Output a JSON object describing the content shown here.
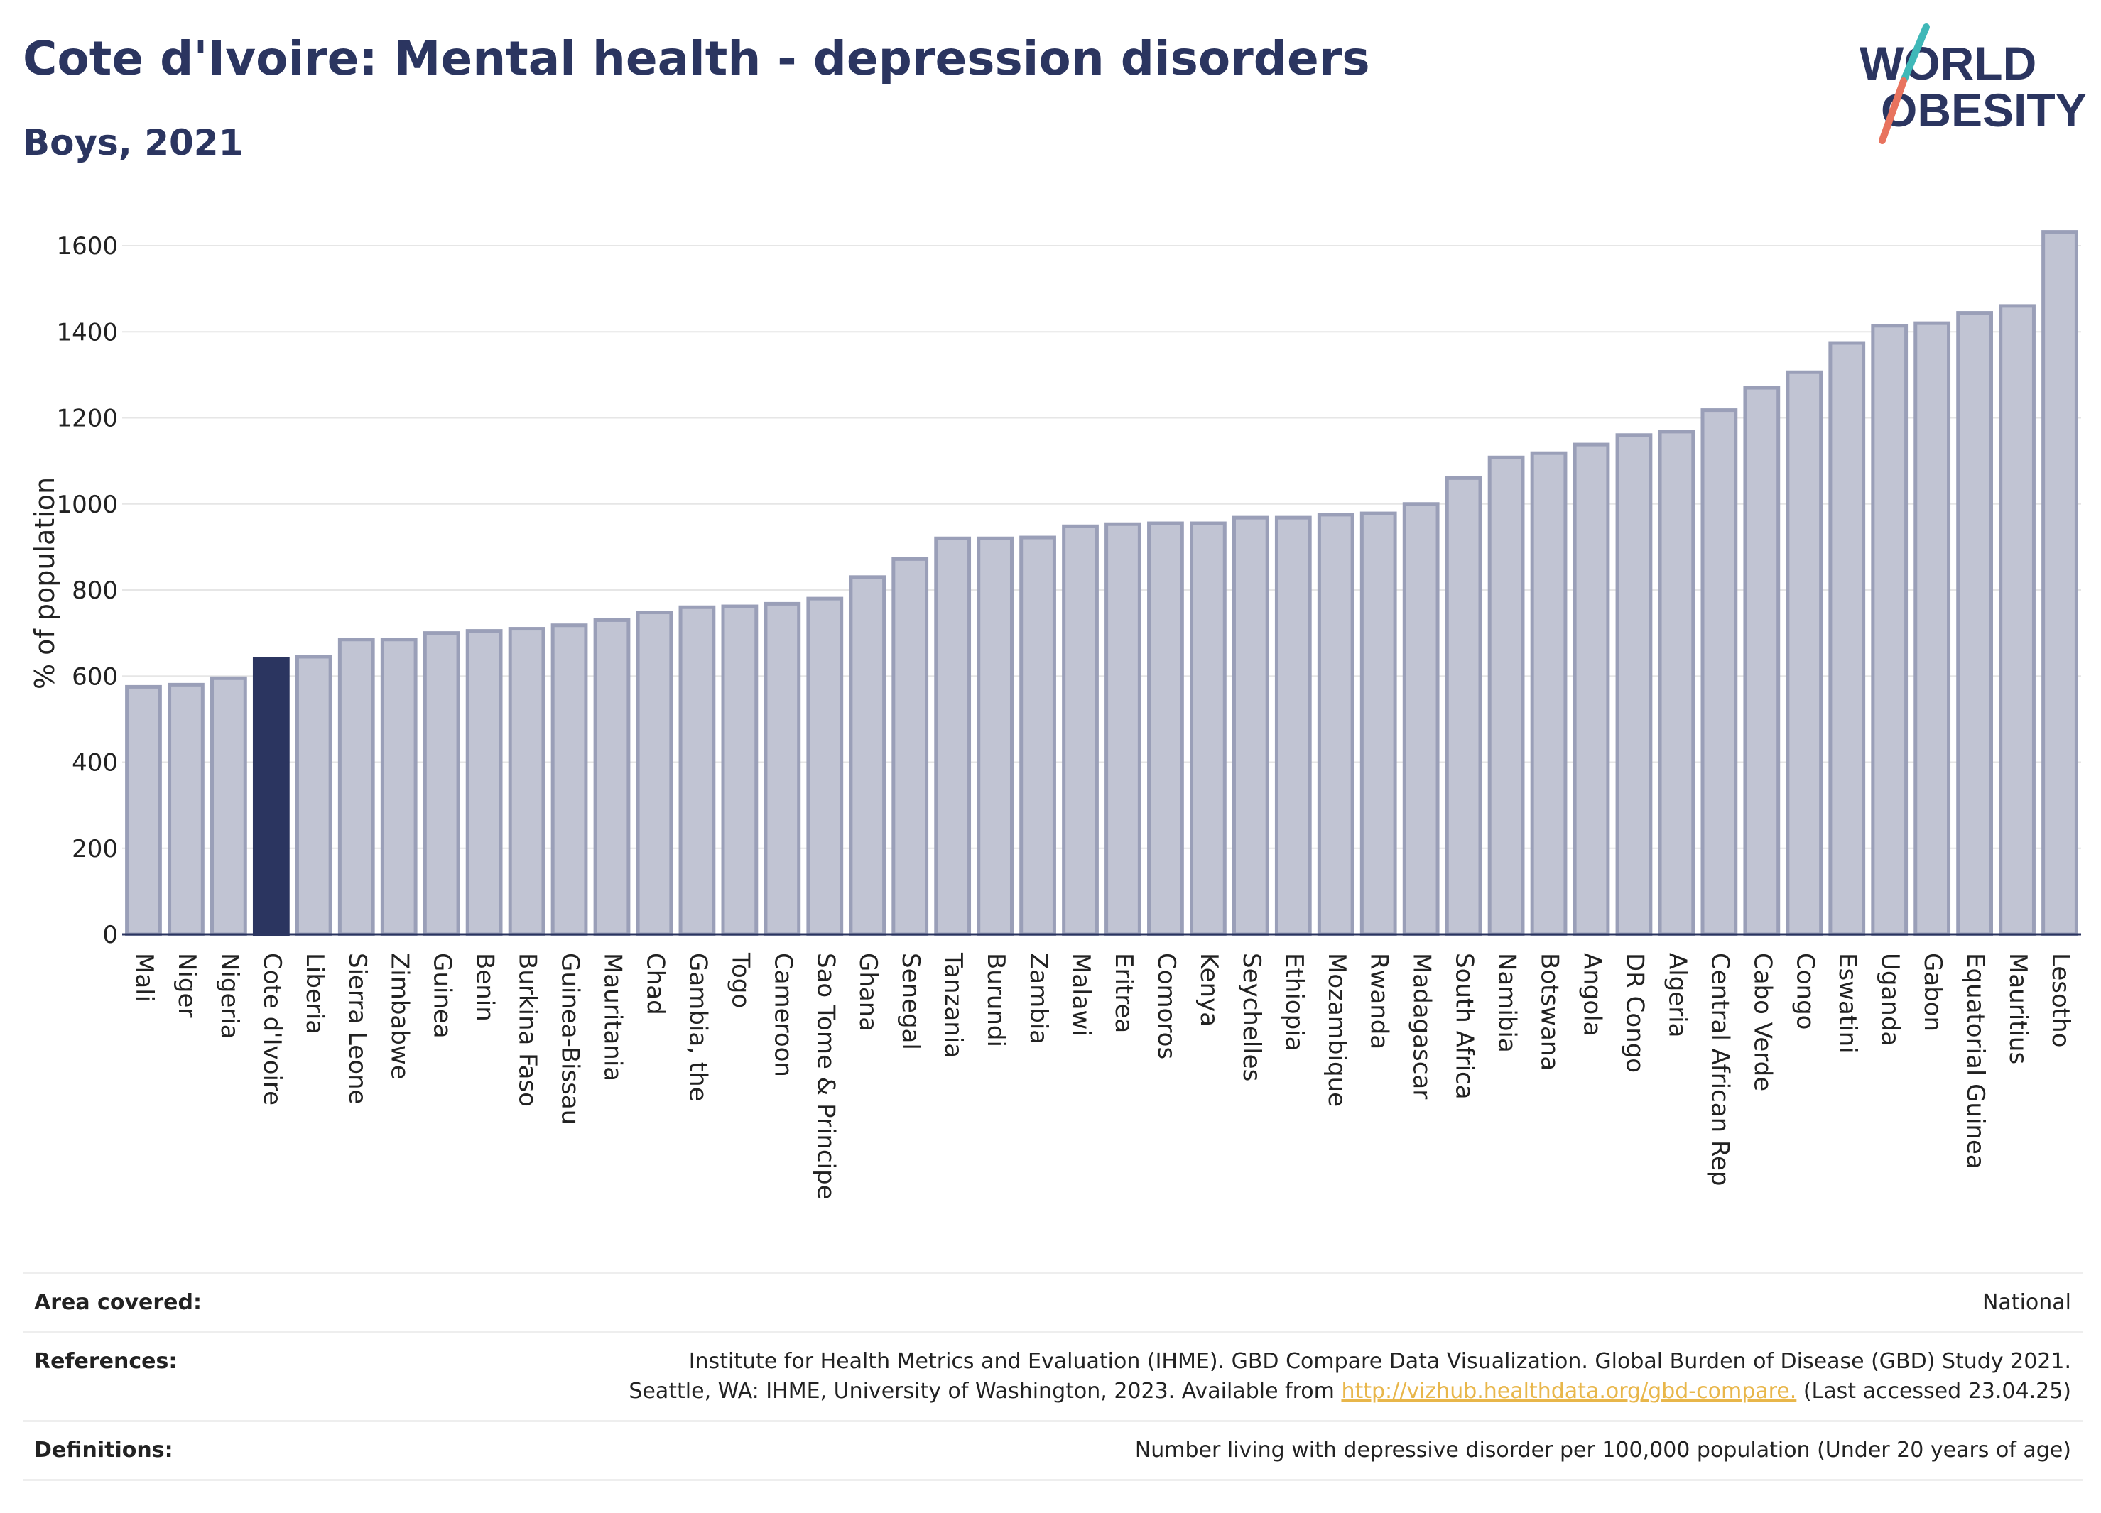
{
  "header": {
    "title": "Cote d'Ivoire: Mental health - depression disorders",
    "subtitle": "Boys, 2021"
  },
  "logo": {
    "line1": "WORLD",
    "line2": "OBESITY"
  },
  "colors": {
    "bar": "#c1c4d3",
    "bar_stroke": "#9a9fb8",
    "highlight": "#2b3560",
    "grid": "#e6e6e6",
    "axis_text": "#222222",
    "logo_navy": "#2b3560",
    "logo_teal": "#3fb8b8",
    "logo_coral": "#e8735e"
  },
  "chart_data": {
    "type": "bar",
    "title": "Cote d'Ivoire: Mental health - depression disorders",
    "subtitle": "Boys, 2021",
    "xlabel": "",
    "ylabel": "% of population",
    "ylim": [
      0,
      1600
    ],
    "yticks": [
      0,
      200,
      400,
      600,
      800,
      1000,
      1200,
      1400,
      1600
    ],
    "grid": true,
    "highlight": "Cote d'Ivoire",
    "categories": [
      "Mali",
      "Niger",
      "Nigeria",
      "Cote d'Ivoire",
      "Liberia",
      "Sierra Leone",
      "Zimbabwe",
      "Guinea",
      "Benin",
      "Burkina Faso",
      "Guinea-Bissau",
      "Mauritania",
      "Chad",
      "Gambia, the",
      "Togo",
      "Cameroon",
      "Sao Tome & Principe",
      "Ghana",
      "Senegal",
      "Tanzania",
      "Burundi",
      "Zambia",
      "Malawi",
      "Eritrea",
      "Comoros",
      "Kenya",
      "Seychelles",
      "Ethiopia",
      "Mozambique",
      "Rwanda",
      "Madagascar",
      "South Africa",
      "Namibia",
      "Botswana",
      "Angola",
      "DR Congo",
      "Algeria",
      "Central African Rep",
      "Cabo Verde",
      "Congo",
      "Eswatini",
      "Uganda",
      "Gabon",
      "Equatorial Guinea",
      "Mauritius",
      "Lesotho"
    ],
    "values": [
      575,
      580,
      595,
      640,
      645,
      685,
      685,
      700,
      705,
      710,
      718,
      730,
      748,
      760,
      762,
      768,
      780,
      830,
      872,
      920,
      920,
      922,
      948,
      953,
      955,
      955,
      968,
      968,
      975,
      978,
      1000,
      1060,
      1108,
      1118,
      1138,
      1160,
      1168,
      1218,
      1270,
      1306,
      1374,
      1414,
      1420,
      1444,
      1460,
      1632
    ]
  },
  "meta": {
    "area_label": "Area covered:",
    "area_value": "National",
    "references_label": "References:",
    "references_line1": "Institute for Health Metrics and Evaluation (IHME). GBD Compare Data Visualization. Global Burden of Disease (GBD) Study 2021.",
    "references_line2_prefix": "Seattle, WA: IHME, University of Washington, 2023. Available from",
    "references_link": "http://vizhub.healthdata.org/gbd-compare.",
    "references_line2_suffix": "(Last accessed 23.04.25)",
    "definitions_label": "Definitions:",
    "definitions_value": "Number living with depressive disorder per 100,000 population (Under 20 years of age)"
  }
}
